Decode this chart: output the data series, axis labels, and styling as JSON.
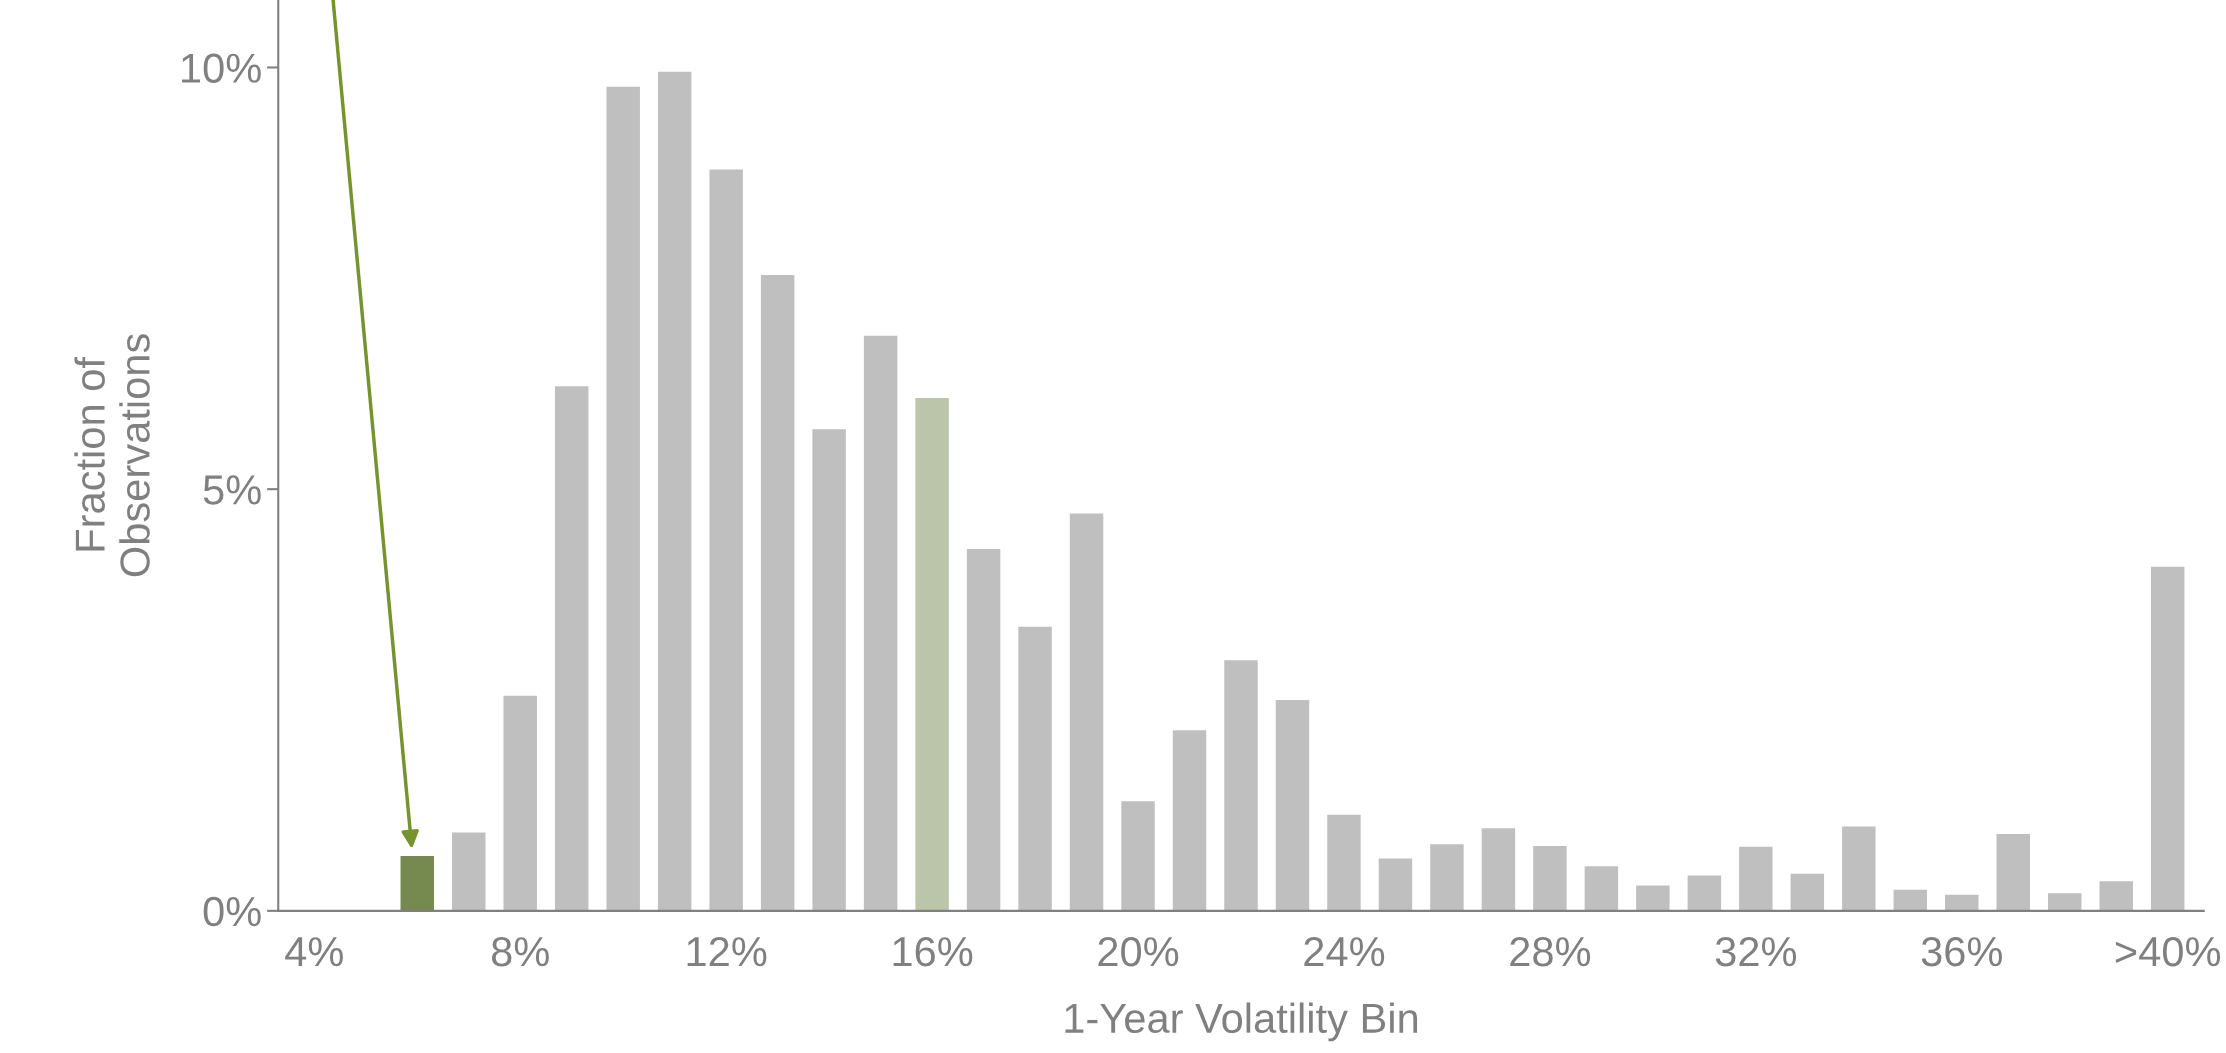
{
  "chart_data": {
    "type": "bar",
    "xlabel": "1-Year Volatility Bin",
    "ylabel": "Fraction of\nObservations",
    "categories": [
      "4%",
      null,
      null,
      null,
      "8%",
      null,
      null,
      null,
      "12%",
      null,
      null,
      null,
      "16%",
      null,
      null,
      null,
      "20%",
      null,
      null,
      null,
      "24%",
      null,
      null,
      null,
      "28%",
      null,
      null,
      null,
      "32%",
      null,
      null,
      null,
      "36%",
      null,
      null,
      null,
      ">40%"
    ],
    "values": [
      0,
      0,
      0.65,
      0.93,
      2.55,
      6.22,
      9.77,
      9.95,
      8.79,
      7.54,
      5.71,
      6.82,
      6.08,
      4.29,
      3.37,
      4.71,
      1.3,
      2.14,
      2.97,
      2.5,
      1.14,
      0.62,
      0.79,
      0.98,
      0.77,
      0.53,
      0.3,
      0.42,
      0.76,
      0.44,
      1.0,
      0.25,
      0.19,
      0.91,
      0.21,
      0.35,
      4.08
    ],
    "colors": [
      "#bfbfbf",
      "#bfbfbf",
      "#76894f",
      "#bfbfbf",
      "#bfbfbf",
      "#bfbfbf",
      "#bfbfbf",
      "#bfbfbf",
      "#bfbfbf",
      "#bfbfbf",
      "#bfbfbf",
      "#bfbfbf",
      "#bbc5aa",
      "#bfbfbf",
      "#bfbfbf",
      "#bfbfbf",
      "#bfbfbf",
      "#bfbfbf",
      "#bfbfbf",
      "#bfbfbf",
      "#bfbfbf",
      "#bfbfbf",
      "#bfbfbf",
      "#bfbfbf",
      "#bfbfbf",
      "#bfbfbf",
      "#bfbfbf",
      "#bfbfbf",
      "#bfbfbf",
      "#bfbfbf",
      "#bfbfbf",
      "#bfbfbf",
      "#bfbfbf",
      "#bfbfbf",
      "#bfbfbf",
      "#bfbfbf",
      "#bfbfbf"
    ],
    "ylim": [
      0,
      10.8
    ],
    "yticks": [
      {
        "value": 0,
        "label": "0%"
      },
      {
        "value": 5,
        "label": "5%"
      },
      {
        "value": 10,
        "label": "10%"
      }
    ],
    "grid": false,
    "legend": false
  }
}
